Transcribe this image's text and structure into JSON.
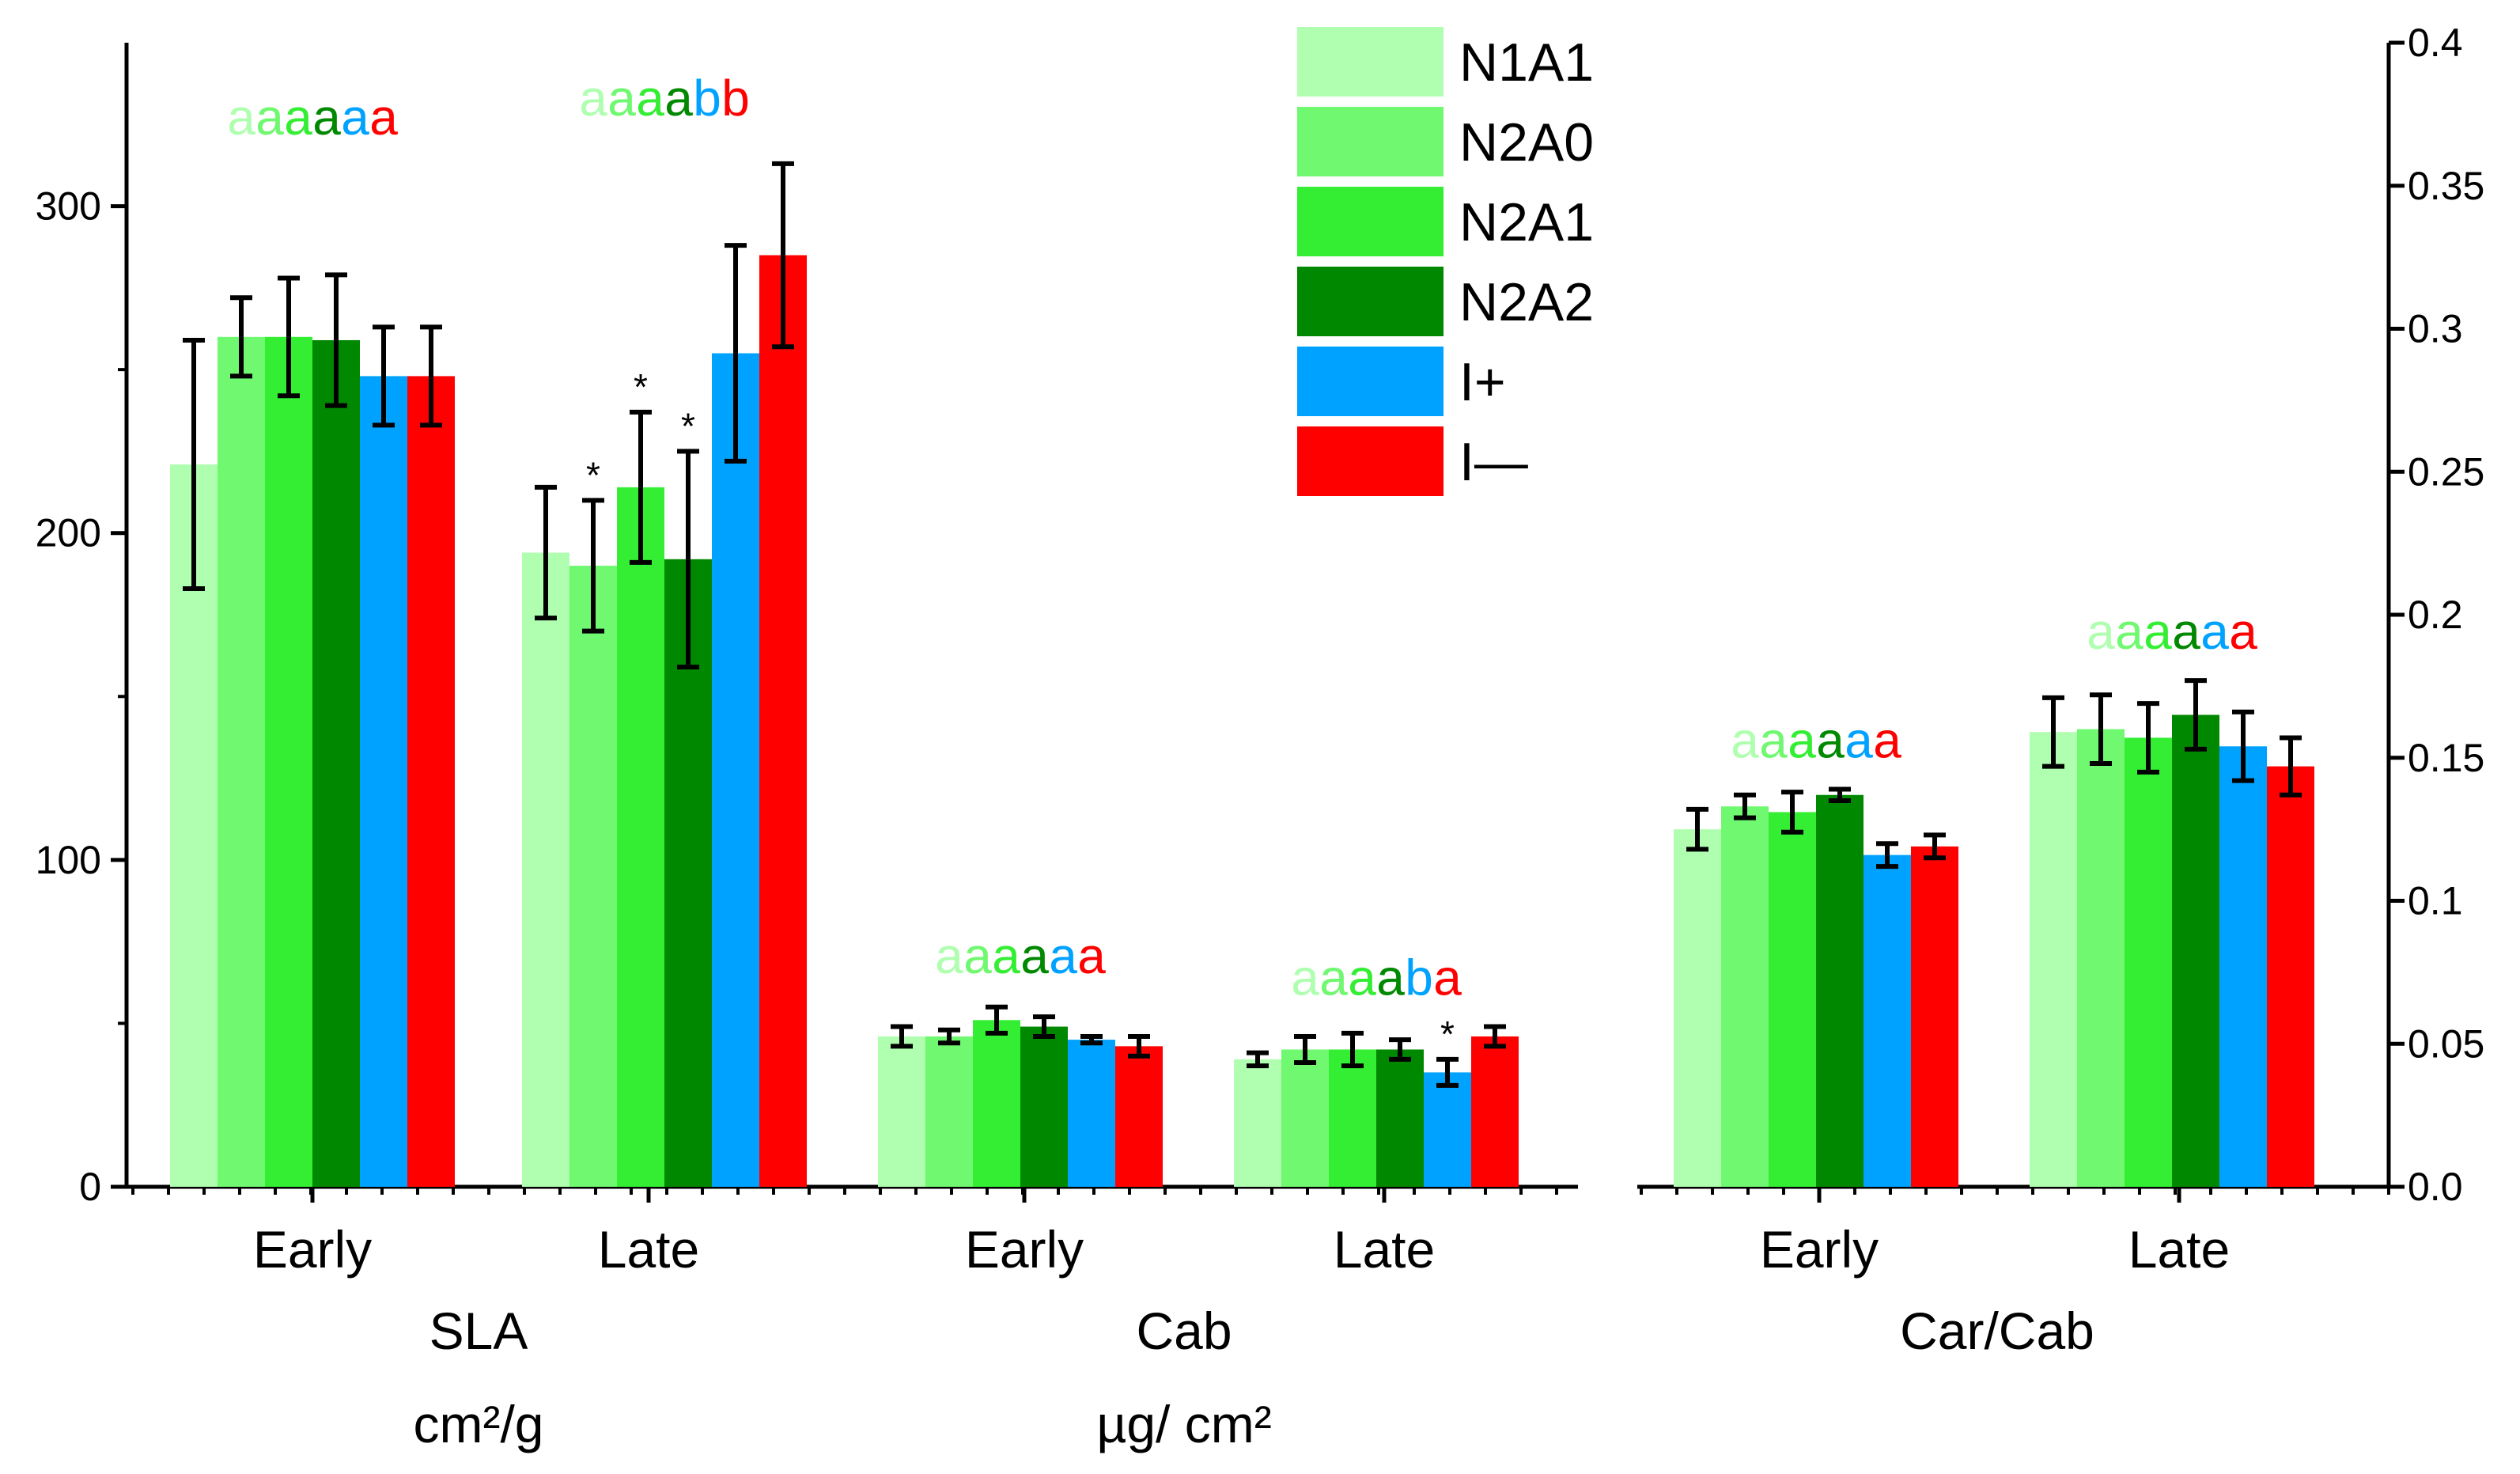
{
  "chart_data": {
    "type": "bar",
    "legend": {
      "placement": "top-center",
      "entries": [
        {
          "name": "N1A1",
          "color": "#b0ffb0"
        },
        {
          "name": "N2A0",
          "color": "#70f870"
        },
        {
          "name": "N2A1",
          "color": "#33ee33"
        },
        {
          "name": "N2A2",
          "color": "#008800"
        },
        {
          "name": "I+",
          "color": "#00a2ff"
        },
        {
          "name": "I—",
          "color": "#ff0000"
        }
      ]
    },
    "left_axis": {
      "ylim": [
        0,
        350
      ],
      "ticks": [
        0,
        100,
        200,
        300
      ],
      "tick_labels": [
        "0",
        "100",
        "200",
        "300"
      ]
    },
    "right_axis": {
      "ylim": [
        0,
        0.4
      ],
      "ticks": [
        0,
        0.05,
        0.1,
        0.15,
        0.2,
        0.25,
        0.3,
        0.35,
        0.4
      ],
      "tick_labels": [
        "0.0",
        "0.05",
        "0.1",
        "0.15",
        "0.2",
        "0.25",
        "0.3",
        "0.35",
        "0.4"
      ]
    },
    "groups": [
      {
        "name": "SLA",
        "unit": "cm²/g",
        "axis": "left",
        "categories": [
          {
            "label": "Early",
            "values": [
              221,
              260,
              260,
              259,
              248,
              248
            ],
            "errors": [
              38,
              12,
              18,
              20,
              15,
              15
            ],
            "letters": [
              "a",
              "a",
              "a",
              "a",
              "a",
              "a"
            ],
            "stars": [
              false,
              false,
              false,
              false,
              false,
              false
            ]
          },
          {
            "label": "Late",
            "values": [
              194,
              190,
              214,
              192,
              255,
              285
            ],
            "errors": [
              20,
              20,
              23,
              33,
              33,
              28
            ],
            "letters": [
              "a",
              "a",
              "a",
              "a",
              "b",
              "b"
            ],
            "stars": [
              false,
              true,
              true,
              true,
              false,
              false
            ]
          }
        ]
      },
      {
        "name": "Cab",
        "unit": "µg/ cm²",
        "axis": "left",
        "categories": [
          {
            "label": "Early",
            "values": [
              46,
              46,
              51,
              49,
              45,
              43
            ],
            "errors": [
              3,
              2,
              4,
              3,
              1,
              3
            ],
            "letters": [
              "a",
              "a",
              "a",
              "a",
              "a",
              "a"
            ],
            "stars": [
              false,
              false,
              false,
              false,
              false,
              false
            ]
          },
          {
            "label": "Late",
            "values": [
              39,
              42,
              42,
              42,
              35,
              46
            ],
            "errors": [
              2,
              4,
              5,
              3,
              4,
              3
            ],
            "letters": [
              "a",
              "a",
              "a",
              "a",
              "b",
              "a"
            ],
            "stars": [
              false,
              false,
              false,
              false,
              true,
              false
            ]
          }
        ]
      },
      {
        "name": "Car/Cab",
        "unit": "",
        "axis": "right",
        "categories": [
          {
            "label": "Early",
            "values": [
              0.125,
              0.133,
              0.131,
              0.137,
              0.116,
              0.119
            ],
            "errors": [
              0.007,
              0.004,
              0.007,
              0.002,
              0.004,
              0.004
            ],
            "letters": [
              "a",
              "a",
              "a",
              "a",
              "a",
              "a"
            ],
            "stars": [
              false,
              false,
              false,
              false,
              false,
              false
            ]
          },
          {
            "label": "Late",
            "values": [
              0.159,
              0.16,
              0.157,
              0.165,
              0.154,
              0.147
            ],
            "errors": [
              0.012,
              0.012,
              0.012,
              0.012,
              0.012,
              0.01
            ],
            "letters": [
              "a",
              "a",
              "a",
              "a",
              "a",
              "a"
            ],
            "stars": [
              false,
              false,
              false,
              false,
              false,
              false
            ]
          }
        ]
      }
    ],
    "star_symbol": "*"
  }
}
